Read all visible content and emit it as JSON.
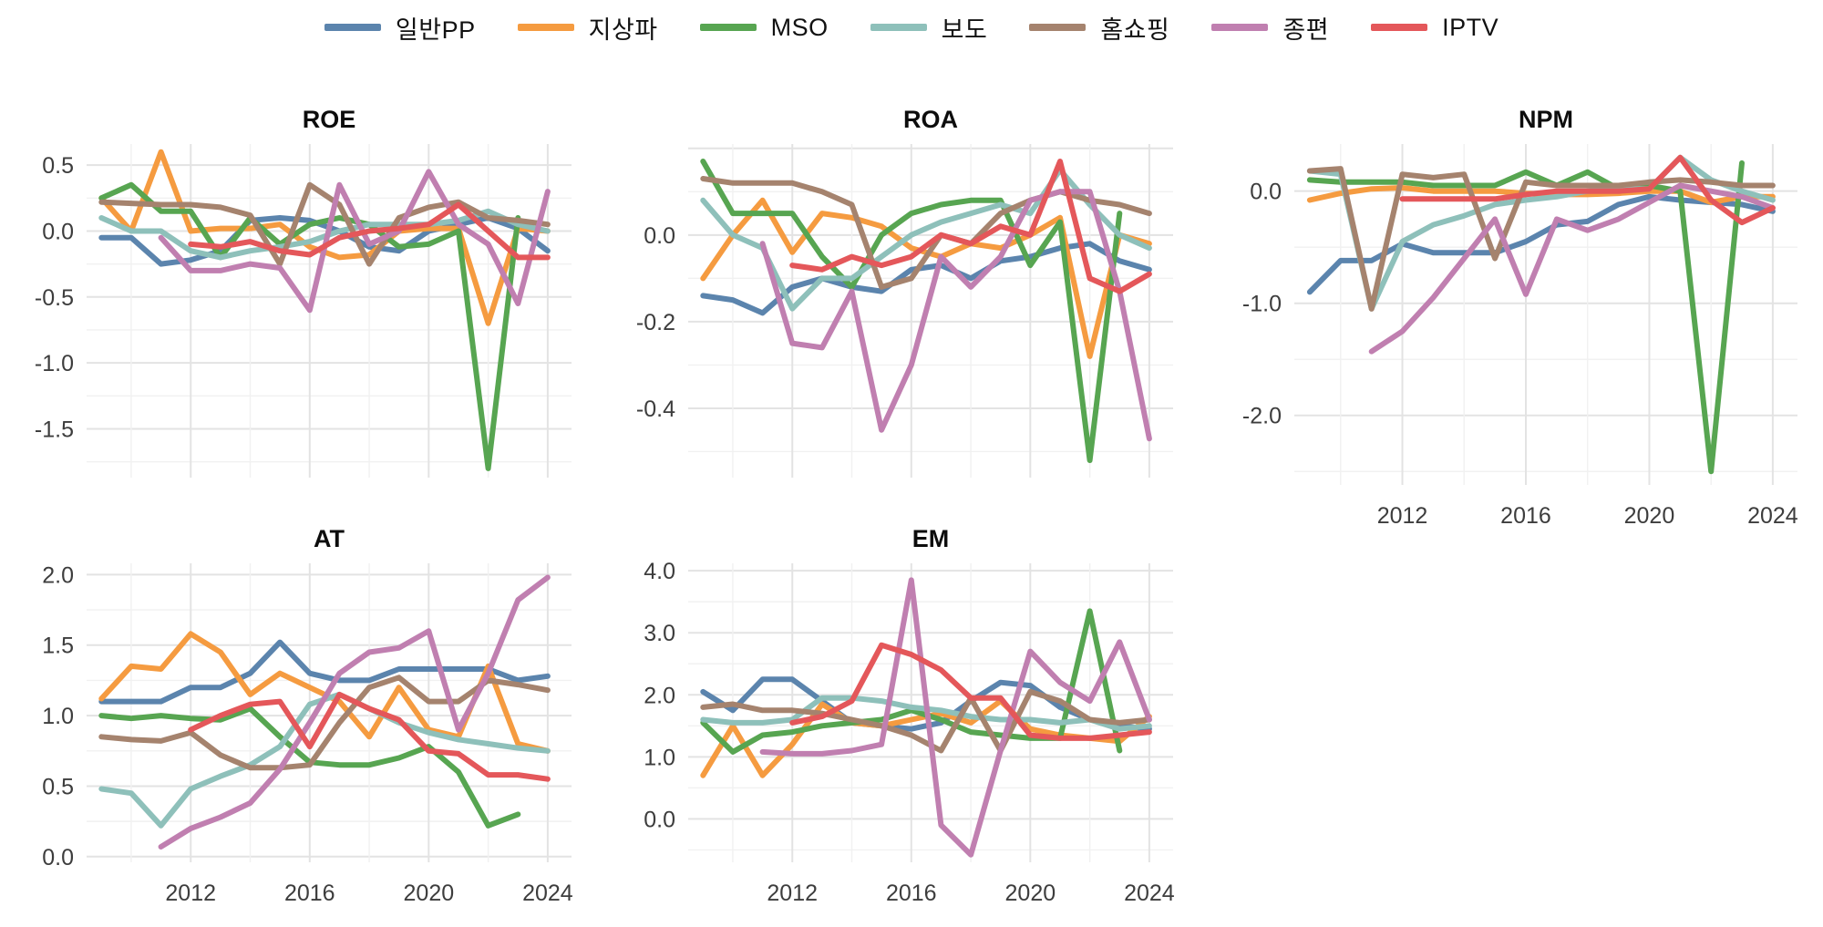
{
  "legend": {
    "items": [
      {
        "label": "일반PP",
        "color": "#5B84AD"
      },
      {
        "label": "지상파",
        "color": "#F59B40"
      },
      {
        "label": "MSO",
        "color": "#57A551"
      },
      {
        "label": "보도",
        "color": "#8EC0BA"
      },
      {
        "label": "홈쇼핑",
        "color": "#A5836E"
      },
      {
        "label": "종편",
        "color": "#C07FB0"
      },
      {
        "label": "IPTV",
        "color": "#E4575A"
      }
    ]
  },
  "x_axis": {
    "ticks": [
      2012,
      2016,
      2020,
      2024
    ],
    "minor_ticks": [
      2010,
      2014,
      2018,
      2022
    ],
    "range": [
      2008.5,
      2024.8
    ]
  },
  "style": {
    "grid_major": "#e3e3e3",
    "grid_minor": "#f1f1f1",
    "line_width": 6
  },
  "chart_data": [
    {
      "type": "line",
      "title": "ROE",
      "xlabel": "",
      "ylabel": "",
      "ylim": [
        -1.87,
        0.66
      ],
      "yticks": [
        0.5,
        0.0,
        -0.5,
        -1.0,
        -1.5
      ],
      "ymajor": 0.5,
      "x_start": 2009,
      "x_end": 2024,
      "legend_position": "top-shared",
      "grid": true,
      "series": [
        {
          "name": "일반PP",
          "color": "#5B84AD",
          "start_year": 2009,
          "values": [
            -0.05,
            -0.05,
            -0.25,
            -0.22,
            -0.15,
            0.08,
            0.1,
            0.08,
            0.0,
            -0.12,
            -0.15,
            0.0,
            0.05,
            0.1,
            0.02,
            -0.15
          ]
        },
        {
          "name": "지상파",
          "color": "#F59B40",
          "start_year": 2009,
          "values": [
            0.25,
            0.0,
            0.6,
            0.0,
            0.02,
            0.02,
            0.05,
            -0.12,
            -0.2,
            -0.18,
            0.0,
            0.02,
            0.02,
            -0.7,
            0.02,
            0.0
          ]
        },
        {
          "name": "MSO",
          "color": "#57A551",
          "start_year": 2009,
          "values": [
            0.25,
            0.35,
            0.15,
            0.15,
            -0.2,
            0.1,
            -0.1,
            0.05,
            0.1,
            0.05,
            -0.12,
            -0.1,
            0.0,
            -1.8,
            0.1
          ]
        },
        {
          "name": "보도",
          "color": "#8EC0BA",
          "start_year": 2009,
          "values": [
            0.1,
            0.0,
            0.0,
            -0.15,
            -0.2,
            -0.15,
            -0.12,
            -0.08,
            0.0,
            0.05,
            0.05,
            0.05,
            0.08,
            0.15,
            0.05,
            0.0
          ]
        },
        {
          "name": "홈쇼핑",
          "color": "#A5836E",
          "start_year": 2009,
          "values": [
            0.22,
            0.21,
            0.2,
            0.2,
            0.18,
            0.12,
            -0.25,
            0.35,
            0.2,
            -0.25,
            0.1,
            0.18,
            0.22,
            0.1,
            0.08,
            0.05
          ]
        },
        {
          "name": "종편",
          "color": "#C07FB0",
          "start_year": 2011,
          "values": [
            -0.05,
            -0.3,
            -0.3,
            -0.25,
            -0.28,
            -0.6,
            0.35,
            -0.1,
            0.0,
            0.45,
            0.05,
            -0.1,
            -0.55,
            0.3
          ]
        },
        {
          "name": "IPTV",
          "color": "#E4575A",
          "start_year": 2012,
          "values": [
            -0.1,
            -0.12,
            -0.08,
            -0.15,
            -0.18,
            -0.05,
            0.0,
            0.02,
            0.05,
            0.2,
            0.0,
            -0.2,
            -0.2
          ]
        }
      ]
    },
    {
      "type": "line",
      "title": "ROA",
      "xlabel": "",
      "ylabel": "",
      "ylim": [
        -0.56,
        0.21
      ],
      "yticks": [
        0.0,
        -0.2,
        -0.4
      ],
      "ymajor": 0.2,
      "x_start": 2009,
      "x_end": 2024,
      "legend_position": "top-shared",
      "grid": true,
      "series": [
        {
          "name": "일반PP",
          "color": "#5B84AD",
          "start_year": 2009,
          "values": [
            -0.14,
            -0.15,
            -0.18,
            -0.12,
            -0.1,
            -0.12,
            -0.13,
            -0.08,
            -0.07,
            -0.1,
            -0.06,
            -0.05,
            -0.03,
            -0.02,
            -0.06,
            -0.08
          ]
        },
        {
          "name": "지상파",
          "color": "#F59B40",
          "start_year": 2009,
          "values": [
            -0.1,
            0.0,
            0.08,
            -0.04,
            0.05,
            0.04,
            0.02,
            -0.03,
            -0.05,
            -0.02,
            -0.03,
            0.0,
            0.04,
            -0.28,
            0.0,
            -0.02
          ]
        },
        {
          "name": "MSO",
          "color": "#57A551",
          "start_year": 2009,
          "values": [
            0.17,
            0.05,
            0.05,
            0.05,
            -0.05,
            -0.12,
            0.0,
            0.05,
            0.07,
            0.08,
            0.08,
            -0.07,
            0.03,
            -0.52,
            0.05
          ]
        },
        {
          "name": "보도",
          "color": "#8EC0BA",
          "start_year": 2009,
          "values": [
            0.08,
            0.0,
            -0.03,
            -0.17,
            -0.1,
            -0.1,
            -0.05,
            0.0,
            0.03,
            0.05,
            0.07,
            0.05,
            0.15,
            0.07,
            0.0,
            -0.03
          ]
        },
        {
          "name": "홈쇼핑",
          "color": "#A5836E",
          "start_year": 2009,
          "values": [
            0.13,
            0.12,
            0.12,
            0.12,
            0.1,
            0.07,
            -0.12,
            -0.1,
            0.0,
            -0.02,
            0.05,
            0.08,
            0.1,
            0.08,
            0.07,
            0.05
          ]
        },
        {
          "name": "종편",
          "color": "#C07FB0",
          "start_year": 2011,
          "values": [
            -0.02,
            -0.25,
            -0.26,
            -0.13,
            -0.45,
            -0.3,
            -0.05,
            -0.12,
            -0.05,
            0.08,
            0.1,
            0.1,
            -0.13,
            -0.47
          ]
        },
        {
          "name": "IPTV",
          "color": "#E4575A",
          "start_year": 2012,
          "values": [
            -0.07,
            -0.08,
            -0.05,
            -0.07,
            -0.05,
            0.0,
            -0.02,
            0.02,
            0.0,
            0.17,
            -0.1,
            -0.13,
            -0.09
          ]
        }
      ]
    },
    {
      "type": "line",
      "title": "NPM",
      "xlabel": "",
      "ylabel": "",
      "ylim": [
        -2.62,
        0.42
      ],
      "yticks": [
        0.0,
        -1.0,
        -2.0
      ],
      "ymajor": 1.0,
      "x_start": 2009,
      "x_end": 2024,
      "legend_position": "top-shared",
      "grid": true,
      "series": [
        {
          "name": "일반PP",
          "color": "#5B84AD",
          "start_year": 2009,
          "values": [
            -0.9,
            -0.62,
            -0.62,
            -0.47,
            -0.55,
            -0.55,
            -0.55,
            -0.45,
            -0.3,
            -0.27,
            -0.12,
            -0.05,
            -0.08,
            -0.1,
            -0.12,
            -0.18
          ]
        },
        {
          "name": "지상파",
          "color": "#F59B40",
          "start_year": 2009,
          "values": [
            -0.08,
            -0.02,
            0.02,
            0.03,
            0.0,
            0.0,
            0.0,
            -0.02,
            -0.03,
            -0.03,
            -0.02,
            0.0,
            0.0,
            -0.1,
            -0.05,
            -0.05
          ]
        },
        {
          "name": "MSO",
          "color": "#57A551",
          "start_year": 2009,
          "values": [
            0.1,
            0.08,
            0.08,
            0.08,
            0.05,
            0.05,
            0.05,
            0.17,
            0.05,
            0.17,
            0.02,
            0.05,
            0.0,
            -2.5,
            0.25
          ]
        },
        {
          "name": "보도",
          "color": "#8EC0BA",
          "start_year": 2009,
          "values": [
            0.18,
            0.15,
            -1.05,
            -0.45,
            -0.3,
            -0.22,
            -0.12,
            -0.08,
            -0.05,
            0.0,
            0.02,
            0.02,
            0.3,
            0.1,
            0.0,
            -0.08
          ]
        },
        {
          "name": "홈쇼핑",
          "color": "#A5836E",
          "start_year": 2009,
          "values": [
            0.18,
            0.2,
            -1.05,
            0.15,
            0.12,
            0.15,
            -0.6,
            0.08,
            0.05,
            0.05,
            0.05,
            0.08,
            0.1,
            0.08,
            0.05,
            0.05
          ]
        },
        {
          "name": "종편",
          "color": "#C07FB0",
          "start_year": 2011,
          "values": [
            -1.43,
            -1.25,
            -0.95,
            -0.6,
            -0.25,
            -0.92,
            -0.25,
            -0.35,
            -0.25,
            -0.1,
            0.05,
            0.0,
            -0.05,
            -0.15
          ]
        },
        {
          "name": "IPTV",
          "color": "#E4575A",
          "start_year": 2012,
          "values": [
            -0.07,
            -0.07,
            -0.07,
            -0.07,
            -0.03,
            0.0,
            0.0,
            0.0,
            0.02,
            0.3,
            -0.08,
            -0.28,
            -0.15
          ]
        }
      ]
    },
    {
      "type": "line",
      "title": "AT",
      "xlabel": "",
      "ylabel": "",
      "ylim": [
        -0.04,
        2.08
      ],
      "yticks": [
        2.0,
        1.5,
        1.0,
        0.5,
        0.0
      ],
      "ymajor": 0.5,
      "x_start": 2009,
      "x_end": 2024,
      "legend_position": "top-shared",
      "grid": true,
      "series": [
        {
          "name": "일반PP",
          "color": "#5B84AD",
          "start_year": 2009,
          "values": [
            1.1,
            1.1,
            1.1,
            1.2,
            1.2,
            1.3,
            1.52,
            1.3,
            1.25,
            1.25,
            1.33,
            1.33,
            1.33,
            1.33,
            1.25,
            1.28
          ]
        },
        {
          "name": "지상파",
          "color": "#F59B40",
          "start_year": 2009,
          "values": [
            1.12,
            1.35,
            1.33,
            1.58,
            1.45,
            1.15,
            1.3,
            1.2,
            1.1,
            0.85,
            1.2,
            0.9,
            0.85,
            1.35,
            0.8,
            0.75
          ]
        },
        {
          "name": "MSO",
          "color": "#57A551",
          "start_year": 2009,
          "values": [
            1.0,
            0.98,
            1.0,
            0.98,
            0.97,
            1.05,
            0.85,
            0.67,
            0.65,
            0.65,
            0.7,
            0.78,
            0.6,
            0.22,
            0.3
          ]
        },
        {
          "name": "보도",
          "color": "#8EC0BA",
          "start_year": 2009,
          "values": [
            0.48,
            0.45,
            0.22,
            0.48,
            0.57,
            0.65,
            0.78,
            1.08,
            1.15,
            1.05,
            0.95,
            0.88,
            0.83,
            0.8,
            0.77,
            0.75
          ]
        },
        {
          "name": "홈쇼핑",
          "color": "#A5836E",
          "start_year": 2009,
          "values": [
            0.85,
            0.83,
            0.82,
            0.88,
            0.72,
            0.63,
            0.63,
            0.65,
            0.95,
            1.2,
            1.27,
            1.1,
            1.1,
            1.25,
            1.22,
            1.18
          ]
        },
        {
          "name": "종편",
          "color": "#C07FB0",
          "start_year": 2011,
          "values": [
            0.07,
            0.2,
            0.28,
            0.38,
            0.62,
            0.95,
            1.3,
            1.45,
            1.48,
            1.6,
            0.9,
            1.3,
            1.82,
            1.98
          ]
        },
        {
          "name": "IPTV",
          "color": "#E4575A",
          "start_year": 2012,
          "values": [
            0.9,
            1.0,
            1.08,
            1.1,
            0.78,
            1.15,
            1.05,
            0.97,
            0.75,
            0.73,
            0.58,
            0.58,
            0.55
          ]
        }
      ]
    },
    {
      "type": "line",
      "title": "EM",
      "xlabel": "",
      "ylabel": "",
      "ylim": [
        -0.7,
        4.12
      ],
      "yticks": [
        4.0,
        3.0,
        2.0,
        1.0,
        0.0
      ],
      "ymajor": 1.0,
      "x_start": 2009,
      "x_end": 2024,
      "legend_position": "top-shared",
      "grid": true,
      "series": [
        {
          "name": "일반PP",
          "color": "#5B84AD",
          "start_year": 2009,
          "values": [
            2.05,
            1.75,
            2.25,
            2.25,
            1.9,
            1.55,
            1.5,
            1.45,
            1.55,
            1.9,
            2.2,
            2.15,
            1.8,
            1.6,
            1.5,
            1.45
          ]
        },
        {
          "name": "지상파",
          "color": "#F59B40",
          "start_year": 2009,
          "values": [
            0.7,
            1.5,
            0.7,
            1.2,
            1.85,
            1.55,
            1.5,
            1.6,
            1.7,
            1.55,
            1.9,
            1.45,
            1.35,
            1.3,
            1.25,
            1.65
          ]
        },
        {
          "name": "MSO",
          "color": "#57A551",
          "start_year": 2009,
          "values": [
            1.55,
            1.08,
            1.35,
            1.4,
            1.5,
            1.55,
            1.6,
            1.75,
            1.6,
            1.4,
            1.35,
            1.3,
            1.3,
            3.35,
            1.1
          ]
        },
        {
          "name": "보도",
          "color": "#8EC0BA",
          "start_year": 2009,
          "values": [
            1.6,
            1.55,
            1.55,
            1.6,
            1.95,
            1.95,
            1.9,
            1.8,
            1.75,
            1.65,
            1.6,
            1.6,
            1.55,
            1.6,
            1.45,
            1.5
          ]
        },
        {
          "name": "홈쇼핑",
          "color": "#A5836E",
          "start_year": 2009,
          "values": [
            1.8,
            1.85,
            1.75,
            1.75,
            1.7,
            1.6,
            1.5,
            1.35,
            1.1,
            1.95,
            1.1,
            2.05,
            1.9,
            1.6,
            1.55,
            1.6
          ]
        },
        {
          "name": "종편",
          "color": "#C07FB0",
          "start_year": 2011,
          "values": [
            1.08,
            1.05,
            1.05,
            1.1,
            1.2,
            3.85,
            -0.1,
            -0.58,
            1.1,
            2.7,
            2.2,
            1.9,
            2.85,
            1.6
          ]
        },
        {
          "name": "IPTV",
          "color": "#E4575A",
          "start_year": 2012,
          "values": [
            1.55,
            1.65,
            1.9,
            2.8,
            2.65,
            2.4,
            1.95,
            1.95,
            1.35,
            1.3,
            1.3,
            1.35,
            1.4
          ]
        }
      ]
    }
  ]
}
